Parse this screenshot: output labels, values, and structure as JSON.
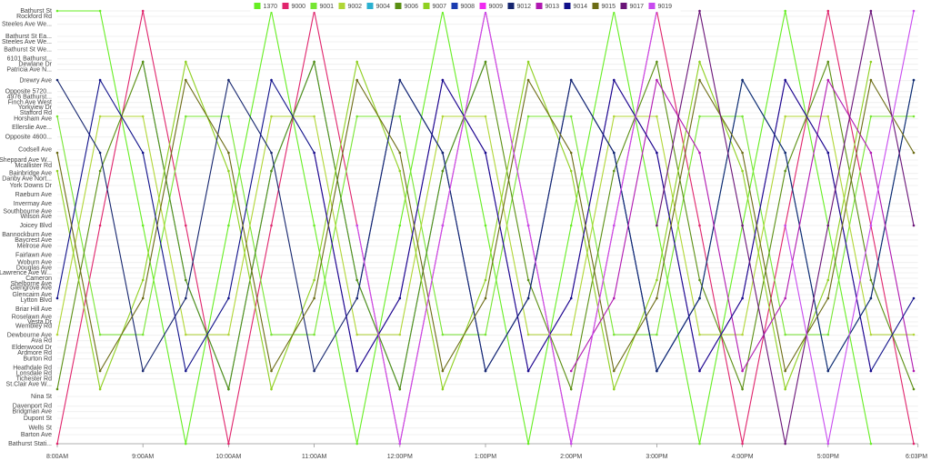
{
  "chart_data": {
    "type": "line",
    "grid": true,
    "legend": "top",
    "x": [
      8,
      8.5,
      9,
      9.5,
      10,
      10.5,
      11,
      11.5,
      12,
      12.5,
      13,
      13.5,
      14,
      14.5,
      15,
      15.5,
      16,
      16.5,
      17,
      17.5,
      18
    ],
    "xlim": [
      8,
      18.05
    ],
    "xticks": [
      {
        "value": 8,
        "label": "8:00AM"
      },
      {
        "value": 9,
        "label": "9:00AM"
      },
      {
        "value": 10,
        "label": "10:00AM"
      },
      {
        "value": 11,
        "label": "11:00AM"
      },
      {
        "value": 12,
        "label": "12:00PM"
      },
      {
        "value": 13,
        "label": "1:00PM"
      },
      {
        "value": 14,
        "label": "2:00PM"
      },
      {
        "value": 15,
        "label": "3:00PM"
      },
      {
        "value": 16,
        "label": "4:00PM"
      },
      {
        "value": 17,
        "label": "5:00PM"
      },
      {
        "value": 18.05,
        "label": "6:03PM"
      }
    ],
    "ylim": [
      0,
      11.9
    ],
    "yticks": [
      {
        "value": 11.9,
        "label": "Bathurst St"
      },
      {
        "value": 11.75,
        "label": "Rockford Rd"
      },
      {
        "value": 11.53,
        "label": "Steeles Ave We..."
      },
      {
        "value": 11.2,
        "label": "Bathurst St Ea..."
      },
      {
        "value": 11.05,
        "label": "Steeles Ave We..."
      },
      {
        "value": 10.83,
        "label": "Bathurst St We..."
      },
      {
        "value": 10.58,
        "label": "6101 Bathurst..."
      },
      {
        "value": 10.43,
        "label": "Dewlane Dr"
      },
      {
        "value": 10.28,
        "label": "Patricia Ave N..."
      },
      {
        "value": 9.98,
        "label": "Drewry Ave"
      },
      {
        "value": 9.68,
        "label": "Opposite 5720..."
      },
      {
        "value": 9.53,
        "label": "4976 Bathurst..."
      },
      {
        "value": 9.38,
        "label": "Finch Ave West"
      },
      {
        "value": 9.25,
        "label": "Yorkview Dr"
      },
      {
        "value": 9.1,
        "label": "Stafford Rd"
      },
      {
        "value": 8.93,
        "label": "Horsham Ave"
      },
      {
        "value": 8.7,
        "label": "Ellerslie Ave..."
      },
      {
        "value": 8.43,
        "label": "Opposite 4600..."
      },
      {
        "value": 8.08,
        "label": "Codsell Ave"
      },
      {
        "value": 7.8,
        "label": "Sheppard Ave W..."
      },
      {
        "value": 7.65,
        "label": "Mcallister Rd"
      },
      {
        "value": 7.43,
        "label": "Bainbridge Ave"
      },
      {
        "value": 7.28,
        "label": "Danby Ave Nort..."
      },
      {
        "value": 7.1,
        "label": "York Downs Dr"
      },
      {
        "value": 6.85,
        "label": "Raeburn Ave"
      },
      {
        "value": 6.6,
        "label": "Invermay Ave"
      },
      {
        "value": 6.38,
        "label": "Southbourne Ave"
      },
      {
        "value": 6.25,
        "label": "Wilson Ave"
      },
      {
        "value": 6.0,
        "label": "Joicey Blvd"
      },
      {
        "value": 5.75,
        "label": "Bannockburn Ave"
      },
      {
        "value": 5.6,
        "label": "Baycrest Ave"
      },
      {
        "value": 5.43,
        "label": "Melrose Ave"
      },
      {
        "value": 5.18,
        "label": "Fairlawn Ave"
      },
      {
        "value": 4.98,
        "label": "Woburn Ave"
      },
      {
        "value": 4.83,
        "label": "Douglas Ave"
      },
      {
        "value": 4.7,
        "label": "Lawrence Ave W..."
      },
      {
        "value": 4.55,
        "label": "Cameron"
      },
      {
        "value": 4.4,
        "label": "Shelborne Ave"
      },
      {
        "value": 4.28,
        "label": "Glengrove Ave"
      },
      {
        "value": 4.1,
        "label": "Glencairn Ave"
      },
      {
        "value": 3.95,
        "label": "Lytton Blvd"
      },
      {
        "value": 3.7,
        "label": "Briar Hill Ave"
      },
      {
        "value": 3.48,
        "label": "Roselawn Ave"
      },
      {
        "value": 3.35,
        "label": "Vesta Dr"
      },
      {
        "value": 3.23,
        "label": "Wembley Rd"
      },
      {
        "value": 2.98,
        "label": "Dewbourne Ave"
      },
      {
        "value": 2.83,
        "label": "Ava Rd"
      },
      {
        "value": 2.65,
        "label": "Eldenwood Dr"
      },
      {
        "value": 2.5,
        "label": "Ardmore Rd"
      },
      {
        "value": 2.33,
        "label": "Burton Rd"
      },
      {
        "value": 2.08,
        "label": "Heathdale Rd"
      },
      {
        "value": 1.93,
        "label": "Lonsdale Rd"
      },
      {
        "value": 1.78,
        "label": "Tichester Rd"
      },
      {
        "value": 1.63,
        "label": "St.Clair Ave W..."
      },
      {
        "value": 1.3,
        "label": "Nina St"
      },
      {
        "value": 1.03,
        "label": "Davenport Rd"
      },
      {
        "value": 0.88,
        "label": "Bridgman Ave"
      },
      {
        "value": 0.7,
        "label": "Dupont St"
      },
      {
        "value": 0.43,
        "label": "Wells St"
      },
      {
        "value": 0.25,
        "label": "Barton Ave"
      },
      {
        "value": 0,
        "label": "Bathurst Stati..."
      }
    ],
    "series": [
      {
        "name": "1370",
        "color": "#66ee22",
        "values": [
          11.9,
          11.9,
          6,
          0,
          6,
          11.9,
          6,
          0,
          6,
          11.9,
          6,
          0,
          6,
          11.9,
          6,
          0,
          6,
          11.9,
          6,
          0,
          null
        ]
      },
      {
        "name": "9000",
        "color": "#e0246c",
        "values": [
          0,
          6,
          11.9,
          6,
          0,
          6,
          11.9,
          6,
          0,
          6,
          11.9,
          6,
          0,
          6,
          11.9,
          6,
          0,
          6,
          11.9,
          6,
          0
        ]
      },
      {
        "name": "9001",
        "color": "#77e633",
        "values": [
          9,
          3,
          3,
          9,
          9,
          3,
          3,
          9,
          9,
          3,
          3,
          9,
          9,
          3,
          3,
          9,
          9,
          3,
          3,
          9,
          9
        ]
      },
      {
        "name": "9002",
        "color": "#b0d636",
        "values": [
          3,
          9,
          9,
          3,
          3,
          9,
          9,
          3,
          3,
          9,
          9,
          3,
          3,
          9,
          9,
          3,
          3,
          9,
          9,
          3,
          3
        ]
      },
      {
        "name": "9004",
        "color": "#2ab0d0",
        "values": [
          null,
          null,
          10.5,
          4.5,
          1.5,
          7.5,
          10.5,
          4.5,
          1.5,
          7.5,
          10.5,
          null,
          null,
          8,
          2,
          4,
          10,
          8,
          2,
          4,
          10
        ]
      },
      {
        "name": "9006",
        "color": "#5a8f12",
        "values": [
          1.5,
          7.5,
          10.5,
          4.5,
          1.5,
          7.5,
          10.5,
          4.5,
          1.5,
          7.5,
          10.5,
          4.5,
          1.5,
          7.5,
          10.5,
          4.5,
          1.5,
          7.5,
          10.5,
          4.5,
          1.5
        ]
      },
      {
        "name": "9007",
        "color": "#8fd020",
        "values": [
          7.5,
          1.5,
          4.5,
          10.5,
          7.5,
          1.5,
          4.5,
          10.5,
          7.5,
          1.5,
          4.5,
          10.5,
          7.5,
          1.5,
          4.5,
          10.5,
          7.5,
          1.5,
          4.5,
          10.5,
          null
        ]
      },
      {
        "name": "9008",
        "color": "#1a3cb0",
        "values": [
          null,
          null,
          null,
          null,
          null,
          null,
          null,
          4,
          10,
          8,
          2,
          4,
          10,
          8,
          2,
          4,
          null,
          null,
          null,
          null,
          null
        ]
      },
      {
        "name": "9009",
        "color": "#f02af0",
        "values": [
          null,
          null,
          null,
          null,
          null,
          null,
          8,
          2,
          4,
          10,
          8,
          2,
          4,
          10,
          8,
          2,
          4,
          10,
          8,
          2,
          null
        ]
      },
      {
        "name": "9012",
        "color": "#15256e",
        "values": [
          10,
          8,
          2,
          4,
          10,
          8,
          2,
          4,
          10,
          8,
          2,
          4,
          10,
          8,
          2,
          4,
          10,
          8,
          2,
          4,
          10
        ]
      },
      {
        "name": "9013",
        "color": "#b018b0",
        "values": [
          null,
          null,
          null,
          null,
          null,
          null,
          null,
          null,
          null,
          null,
          null,
          null,
          2,
          4,
          10,
          8,
          2,
          4,
          10,
          8,
          2
        ]
      },
      {
        "name": "9014",
        "color": "#10108a",
        "values": [
          4,
          10,
          8,
          2,
          4,
          10,
          8,
          2,
          4,
          10,
          8,
          2,
          4,
          10,
          8,
          2,
          4,
          10,
          8,
          2,
          4
        ]
      },
      {
        "name": "9015",
        "color": "#6b6b14",
        "values": [
          8,
          2,
          4,
          10,
          8,
          2,
          4,
          10,
          8,
          2,
          4,
          10,
          8,
          2,
          4,
          10,
          8,
          2,
          4,
          10,
          8
        ]
      },
      {
        "name": "9017",
        "color": "#6a1478",
        "values": [
          null,
          null,
          null,
          null,
          null,
          null,
          null,
          null,
          null,
          null,
          null,
          null,
          null,
          null,
          6,
          11.9,
          6,
          0,
          6,
          11.9,
          6
        ]
      },
      {
        "name": "9019",
        "color": "#c84aef",
        "values": [
          null,
          null,
          null,
          null,
          null,
          null,
          null,
          6,
          0,
          6,
          11.9,
          6,
          0,
          6,
          11.9,
          null,
          null,
          6,
          0,
          6,
          11.9
        ]
      }
    ]
  }
}
